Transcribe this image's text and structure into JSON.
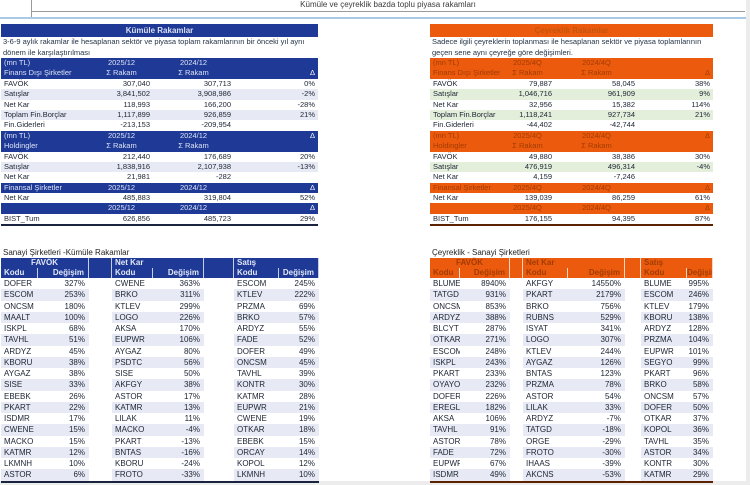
{
  "page_title": "Kümüle ve çeyreklik bazda toplu piyasa rakamları",
  "colors": {
    "navy": "#1e3a96",
    "orange": "#ec5a0d",
    "stripeblue": "#e7eaf5",
    "stripegreen": "#e3efdb",
    "blueline": "#a9c9e8"
  },
  "cumulative": {
    "title": "Kümüle Rakamlar",
    "description": "3-6-9 aylık rakamlar ile hesaplanan sektör ve piyasa toplam rakamlarının bir önceki yıl aynı dönem ile karşılaştırılması",
    "sections": [
      {
        "header_rows": [
          [
            "(mn TL)",
            "2025/12",
            "2024/12",
            ""
          ],
          [
            "Finans Dışı Şirketler",
            "Σ Rakam",
            "Σ Rakam",
            "Δ"
          ]
        ],
        "rows": [
          [
            "FAVÖK",
            "307,040",
            "307,713",
            "0%"
          ],
          [
            "Satışlar",
            "3,841,502",
            "3,908,986",
            "-2%"
          ],
          [
            "Net Kar",
            "118,993",
            "166,200",
            "-28%"
          ],
          [
            "Toplam Fin.Borçlar",
            "1,117,899",
            "926,859",
            "21%"
          ],
          [
            "Fin.Giderleri",
            "-213,153",
            "-209,954",
            ""
          ]
        ]
      },
      {
        "header_rows": [
          [
            "(mn TL)",
            "2025/12",
            "2024/12",
            "Δ"
          ],
          [
            "Holdingler",
            "Σ Rakam",
            "Σ Rakam",
            ""
          ]
        ],
        "rows": [
          [
            "FAVÖK",
            "212,440",
            "176,689",
            "20%"
          ],
          [
            "Satışlar",
            "1,838,916",
            "2,107,938",
            "-13%"
          ],
          [
            "Net Kar",
            "21,981",
            "-282",
            ""
          ]
        ]
      },
      {
        "header_rows": [
          [
            "Finansal Şirketler",
            "2025/12",
            "2024/12",
            "Δ"
          ]
        ],
        "rows": [
          [
            "Net Kar",
            "485,883",
            "319,804",
            "52%"
          ]
        ]
      },
      {
        "header_rows": [
          [
            "",
            "2025/12",
            "2024/12",
            "Δ"
          ]
        ],
        "rows": [
          [
            "BIST_Tum",
            "626,856",
            "485,723",
            "29%"
          ]
        ]
      }
    ]
  },
  "quarterly": {
    "title": "Çeyreklik Rakamlar",
    "description": "Sadece ilgili çeyreklerin toplanması ile hesaplanan sektör ve piyasa toplamlarının geçen sene aynı çeyreğe göre değişimleri.",
    "sections": [
      {
        "header_rows": [
          [
            "(mn TL)",
            "2025/4Q",
            "2024/4Q",
            ""
          ],
          [
            "Finans Dışı Şirketler",
            "Σ Rakam",
            "Σ Rakam",
            "Δ"
          ]
        ],
        "rows": [
          [
            "FAVÖK",
            "79,887",
            "58,045",
            "38%"
          ],
          [
            "Satışlar",
            "1,046,716",
            "961,909",
            "9%"
          ],
          [
            "Net Kar",
            "32,956",
            "15,382",
            "114%"
          ],
          [
            "Toplam Fin.Borçlar",
            "1,118,241",
            "927,734",
            "21%"
          ],
          [
            "Fin.Giderleri",
            "-44,402",
            "-42,744",
            ""
          ]
        ]
      },
      {
        "header_rows": [
          [
            "(mn TL)",
            "2025/4Q",
            "2024/4Q",
            "Δ"
          ],
          [
            "Holdingler",
            "Σ Rakam",
            "Σ Rakam",
            ""
          ]
        ],
        "rows": [
          [
            "FAVÖK",
            "49,880",
            "38,386",
            "30%"
          ],
          [
            "Satışlar",
            "476,919",
            "496,314",
            "-4%"
          ],
          [
            "Net Kar",
            "4,159",
            "-7,246",
            ""
          ]
        ]
      },
      {
        "header_rows": [
          [
            "Finansal Şirketler",
            "2025/4Q",
            "2024/4Q",
            "Δ"
          ]
        ],
        "rows": [
          [
            "Net Kar",
            "139,039",
            "86,259",
            "61%"
          ]
        ]
      },
      {
        "header_rows": [
          [
            "",
            "2025/4Q",
            "2024/4Q",
            "Δ"
          ]
        ],
        "rows": [
          [
            "BIST_Tum",
            "176,155",
            "94,395",
            "87%"
          ]
        ]
      }
    ]
  },
  "industrial_cumulative": {
    "title": "Sanayi Şirketleri -Kümüle Rakamlar",
    "code_header": "Kodu",
    "change_header": "Değişim",
    "groups": [
      {
        "name": "FAVÖK",
        "rows": [
          [
            "DOFER",
            "327%"
          ],
          [
            "ESCOM",
            "253%"
          ],
          [
            "ONCSM",
            "180%"
          ],
          [
            "MAALT",
            "100%"
          ],
          [
            "ISKPL",
            "68%"
          ],
          [
            "TAVHL",
            "51%"
          ],
          [
            "ARDYZ",
            "45%"
          ],
          [
            "KBORU",
            "38%"
          ],
          [
            "AYGAZ",
            "38%"
          ],
          [
            "SISE",
            "33%"
          ],
          [
            "EBEBK",
            "26%"
          ],
          [
            "PKART",
            "22%"
          ],
          [
            "ISDMR",
            "17%"
          ],
          [
            "CWENE",
            "15%"
          ],
          [
            "MACKO",
            "15%"
          ],
          [
            "KATMR",
            "12%"
          ],
          [
            "LKMNH",
            "10%"
          ],
          [
            "ASTOR",
            "6%"
          ]
        ]
      },
      {
        "name": "Net Kar",
        "rows": [
          [
            "CWENE",
            "363%"
          ],
          [
            "BRKO",
            "311%"
          ],
          [
            "KTLEV",
            "299%"
          ],
          [
            "LOGO",
            "226%"
          ],
          [
            "AKSA",
            "170%"
          ],
          [
            "EUPWR",
            "106%"
          ],
          [
            "AYGAZ",
            "80%"
          ],
          [
            "PSDTC",
            "56%"
          ],
          [
            "SISE",
            "50%"
          ],
          [
            "AKFGY",
            "38%"
          ],
          [
            "ASTOR",
            "17%"
          ],
          [
            "KATMR",
            "13%"
          ],
          [
            "LILAK",
            "11%"
          ],
          [
            "MACKO",
            "-4%"
          ],
          [
            "PKART",
            "-13%"
          ],
          [
            "BNTAS",
            "-16%"
          ],
          [
            "KBORU",
            "-24%"
          ],
          [
            "FROTO",
            "-33%"
          ]
        ]
      },
      {
        "name": "Satış",
        "rows": [
          [
            "ESCOM",
            "245%"
          ],
          [
            "KTLEV",
            "222%"
          ],
          [
            "PRZMA",
            "69%"
          ],
          [
            "BRKO",
            "57%"
          ],
          [
            "ARDYZ",
            "55%"
          ],
          [
            "FADE",
            "52%"
          ],
          [
            "DOFER",
            "49%"
          ],
          [
            "ONCSM",
            "45%"
          ],
          [
            "TAVHL",
            "39%"
          ],
          [
            "KONTR",
            "30%"
          ],
          [
            "KATMR",
            "28%"
          ],
          [
            "EUPWR",
            "21%"
          ],
          [
            "CWENE",
            "19%"
          ],
          [
            "OTKAR",
            "18%"
          ],
          [
            "EBEBK",
            "15%"
          ],
          [
            "ORCAY",
            "14%"
          ],
          [
            "KOPOL",
            "12%"
          ],
          [
            "LKMNH",
            "10%"
          ]
        ]
      }
    ]
  },
  "industrial_quarterly": {
    "title": "Çeyreklik - Sanayi Şirketleri",
    "code_header": "Kodu",
    "change_header": "Değişim",
    "groups": [
      {
        "name": "FAVÖK",
        "rows": [
          [
            "BLUME",
            "8940%"
          ],
          [
            "TATGD",
            "931%"
          ],
          [
            "ONCSM",
            "853%"
          ],
          [
            "ARDYZ",
            "388%"
          ],
          [
            "BLCYT",
            "287%"
          ],
          [
            "OTKAR",
            "271%"
          ],
          [
            "ESCOM",
            "248%"
          ],
          [
            "ISKPL",
            "243%"
          ],
          [
            "PKART",
            "233%"
          ],
          [
            "OYAYO",
            "232%"
          ],
          [
            "DOFER",
            "226%"
          ],
          [
            "EREGL",
            "182%"
          ],
          [
            "AKSA",
            "106%"
          ],
          [
            "TAVHL",
            "91%"
          ],
          [
            "ASTOR",
            "78%"
          ],
          [
            "FADE",
            "72%"
          ],
          [
            "EUPWR",
            "67%"
          ],
          [
            "ISDMR",
            "49%"
          ]
        ]
      },
      {
        "name": "Net Kar",
        "rows": [
          [
            "AKFGY",
            "14550%"
          ],
          [
            "PKART",
            "2179%"
          ],
          [
            "BRKO",
            "756%"
          ],
          [
            "RUBNS",
            "529%"
          ],
          [
            "ISYAT",
            "341%"
          ],
          [
            "LOGO",
            "307%"
          ],
          [
            "KTLEV",
            "244%"
          ],
          [
            "AYGAZ",
            "126%"
          ],
          [
            "BNTAS",
            "123%"
          ],
          [
            "PRZMA",
            "78%"
          ],
          [
            "ASTOR",
            "54%"
          ],
          [
            "LILAK",
            "33%"
          ],
          [
            "ARDYZ",
            "-7%"
          ],
          [
            "TATGD",
            "-18%"
          ],
          [
            "ORGE",
            "-29%"
          ],
          [
            "FROTO",
            "-30%"
          ],
          [
            "IHAAS",
            "-39%"
          ],
          [
            "AKCNS",
            "-53%"
          ]
        ]
      },
      {
        "name": "Satış",
        "rows": [
          [
            "BLUME",
            "995%"
          ],
          [
            "ESCOM",
            "246%"
          ],
          [
            "KTLEV",
            "179%"
          ],
          [
            "KBORU",
            "138%"
          ],
          [
            "ARDYZ",
            "128%"
          ],
          [
            "PRZMA",
            "104%"
          ],
          [
            "EUPWR",
            "101%"
          ],
          [
            "SEGYO",
            "99%"
          ],
          [
            "PKART",
            "96%"
          ],
          [
            "BRKO",
            "58%"
          ],
          [
            "ONCSM",
            "57%"
          ],
          [
            "DOFER",
            "50%"
          ],
          [
            "OTKAR",
            "37%"
          ],
          [
            "KOPOL",
            "36%"
          ],
          [
            "TAVHL",
            "35%"
          ],
          [
            "ASTOR",
            "34%"
          ],
          [
            "KONTR",
            "30%"
          ],
          [
            "KATMR",
            "29%"
          ]
        ]
      }
    ]
  }
}
